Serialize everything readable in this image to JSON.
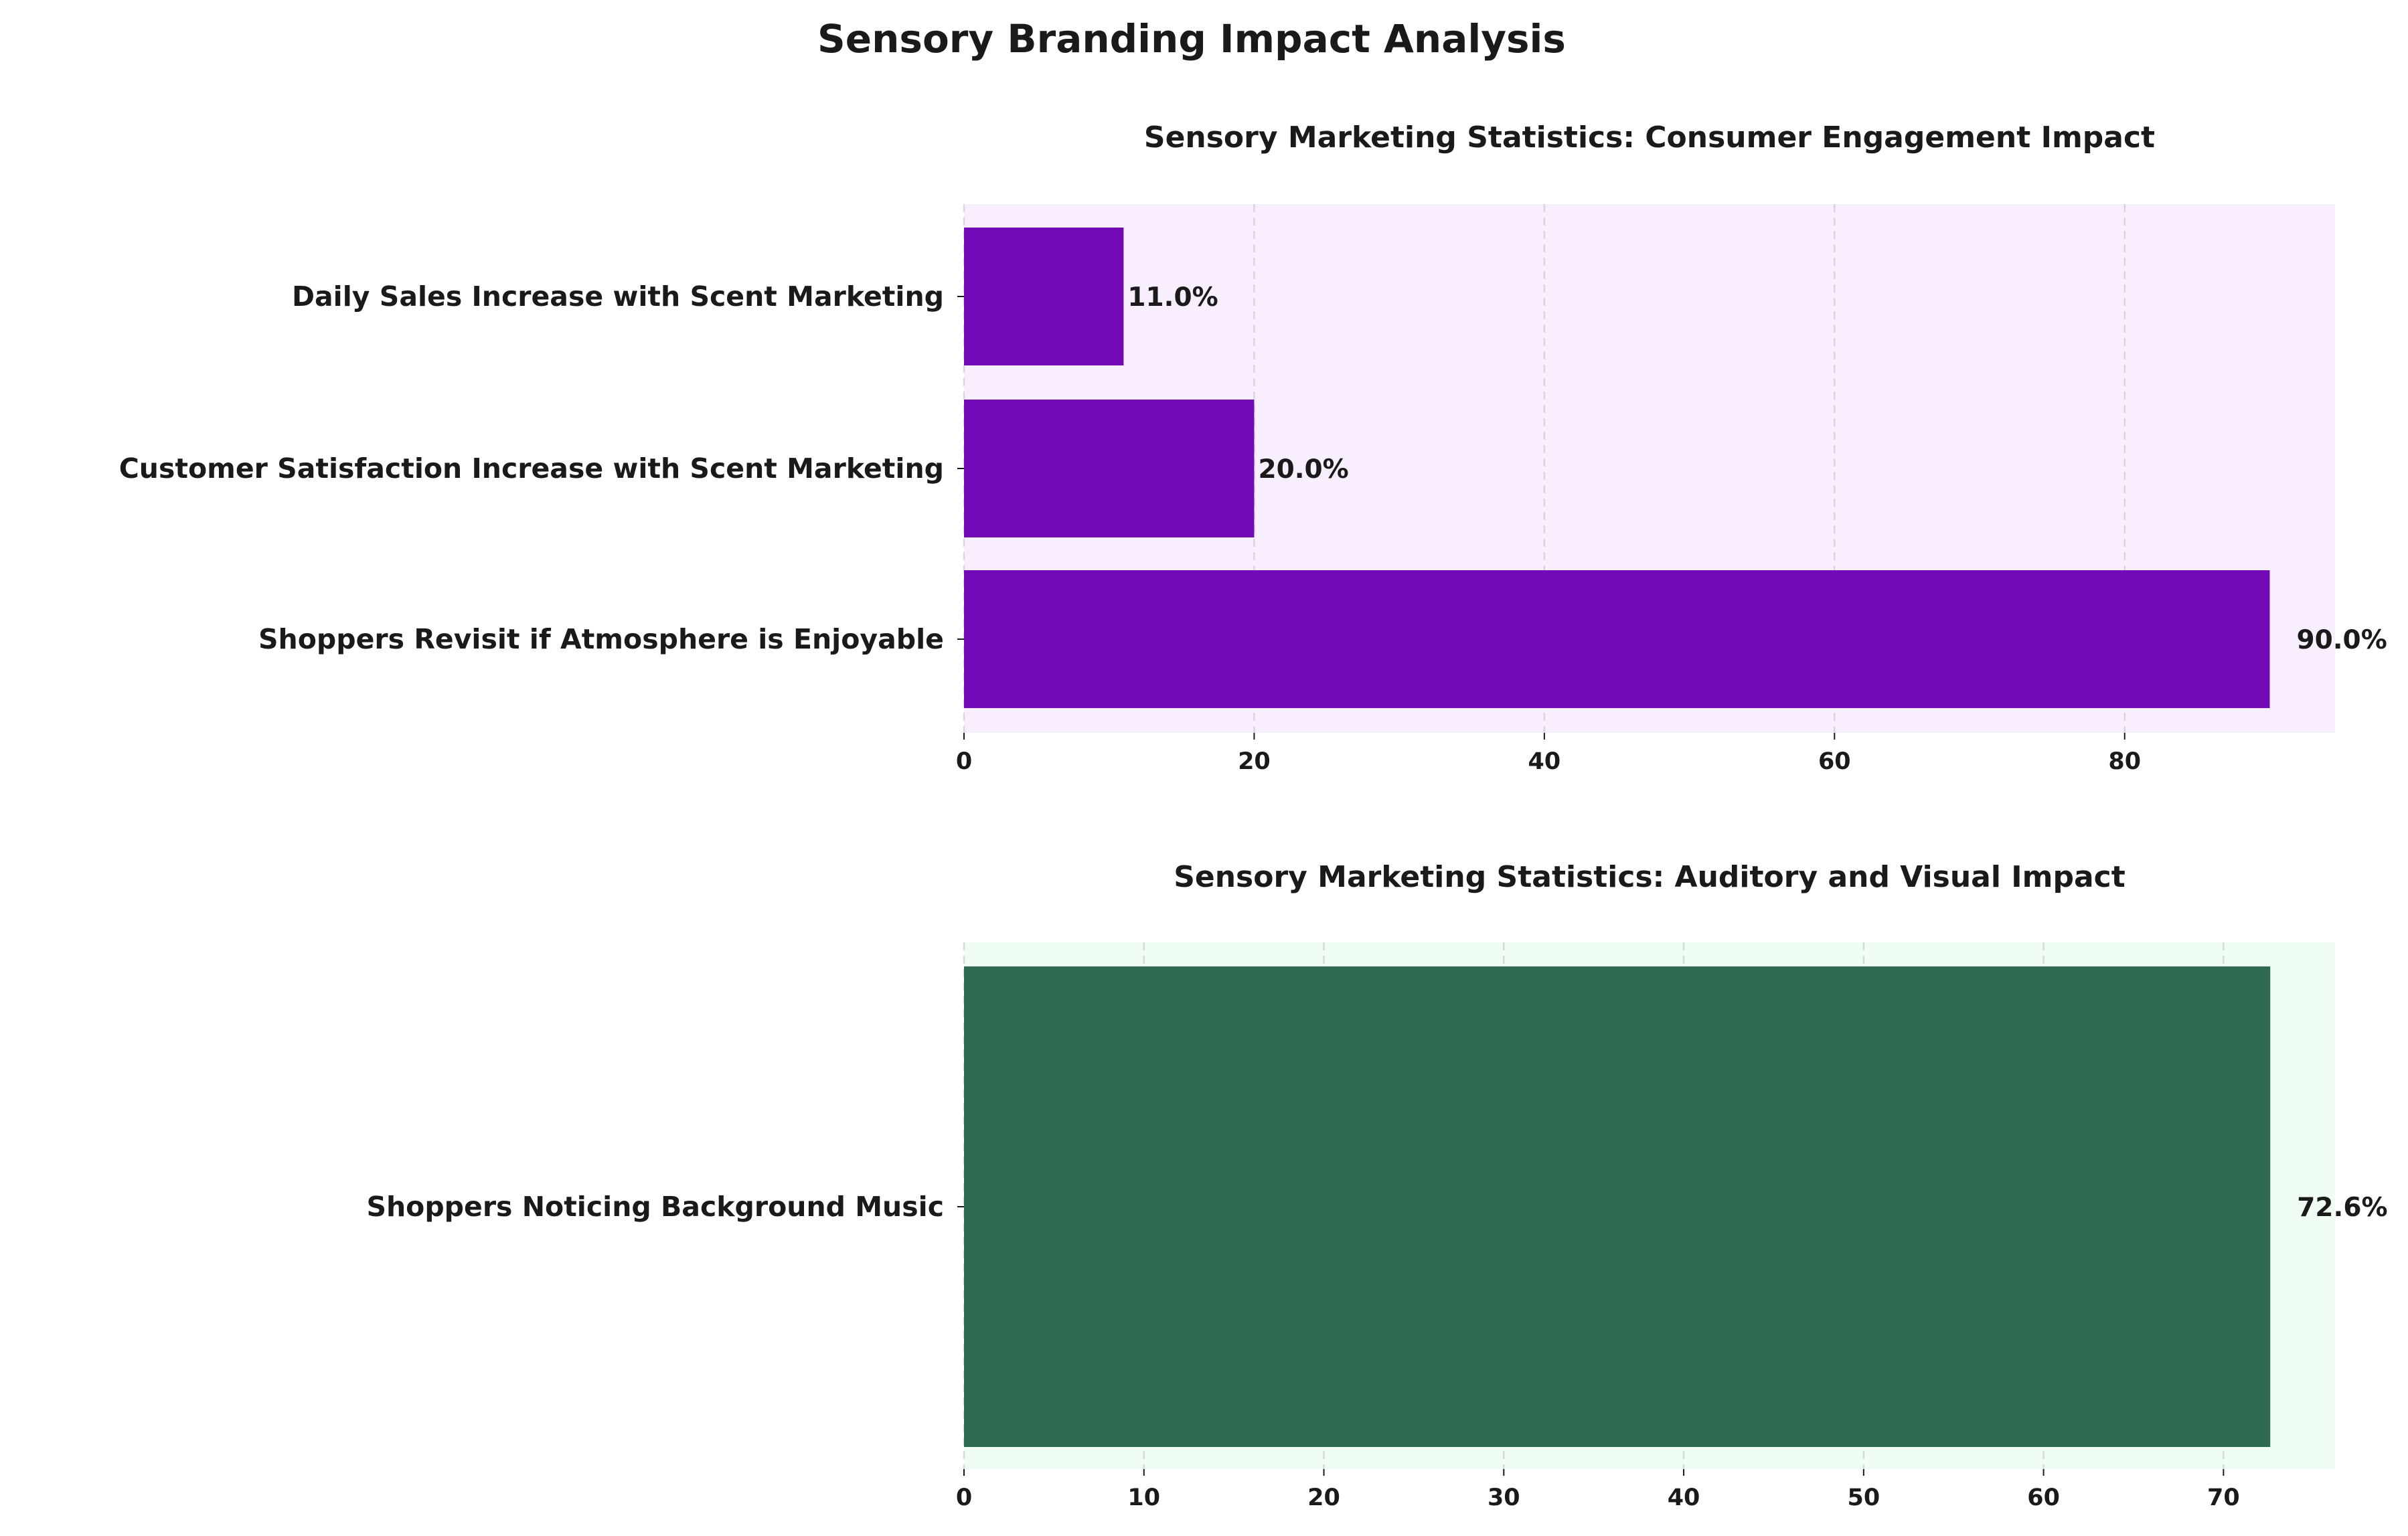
{
  "suptitle": "Sensory Branding Impact Analysis",
  "chart_data": [
    {
      "type": "bar",
      "orientation": "horizontal",
      "title": "Sensory Marketing Statistics: Consumer Engagement Impact",
      "categories": [
        "Daily Sales Increase with Scent Marketing",
        "Customer Satisfaction Increase with Scent Marketing",
        "Shoppers Revisit if Atmosphere is Enjoyable"
      ],
      "values": [
        11.0,
        20.0,
        90.0
      ],
      "value_labels": [
        "11.0%",
        "20.0%",
        "90.0%"
      ],
      "xlim": [
        0,
        94.5
      ],
      "xticks": [
        0,
        20,
        40,
        60,
        80
      ],
      "xtick_labels": [
        "0",
        "20",
        "40",
        "60",
        "80"
      ],
      "xlabel": "",
      "ylabel": "",
      "grid": "x",
      "bar_color": "#7209b7",
      "background_color": "#f8eefe"
    },
    {
      "type": "bar",
      "orientation": "horizontal",
      "title": "Sensory Marketing Statistics: Auditory and Visual Impact",
      "categories": [
        "Shoppers Noticing Background Music"
      ],
      "values": [
        72.6
      ],
      "value_labels": [
        "72.6%"
      ],
      "xlim": [
        0,
        76.2
      ],
      "xticks": [
        0,
        10,
        20,
        30,
        40,
        50,
        60,
        70
      ],
      "xtick_labels": [
        "0",
        "10",
        "20",
        "30",
        "40",
        "50",
        "60",
        "70"
      ],
      "xlabel": "",
      "ylabel": "",
      "grid": "x",
      "bar_color": "#2d6a4f",
      "background_color": "#effdf2"
    }
  ]
}
